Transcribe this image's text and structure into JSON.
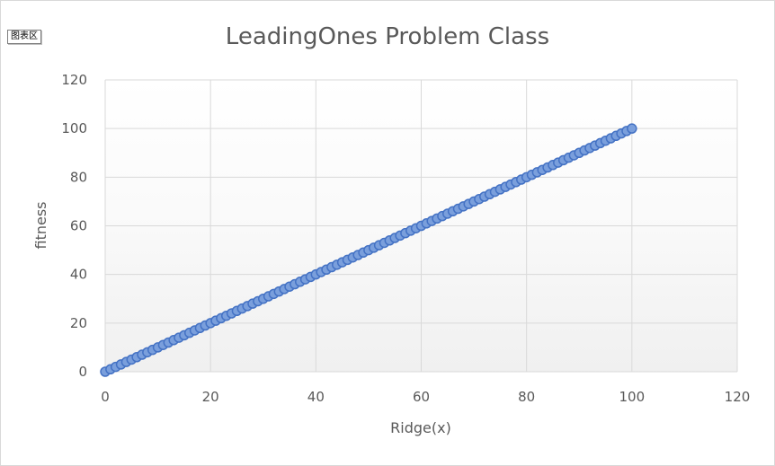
{
  "chart_area_tag": "图表区",
  "colors": {
    "marker_fill": "#7a9fdc",
    "marker_stroke": "#4472c4",
    "gridline": "#d9d9d9",
    "text": "#595959"
  },
  "chart_data": {
    "type": "scatter",
    "title": "LeadingOnes Problem Class",
    "xlabel": "Ridge(x)",
    "ylabel": "fitness",
    "xlim": [
      0,
      120
    ],
    "ylim": [
      0,
      120
    ],
    "x_ticks": [
      0,
      20,
      40,
      60,
      80,
      100,
      120
    ],
    "y_ticks": [
      0,
      20,
      40,
      60,
      80,
      100,
      120
    ],
    "grid": true,
    "legend": "none",
    "series": [
      {
        "x": [
          0,
          1,
          2,
          3,
          4,
          5,
          6,
          7,
          8,
          9,
          10,
          11,
          12,
          13,
          14,
          15,
          16,
          17,
          18,
          19,
          20,
          21,
          22,
          23,
          24,
          25,
          26,
          27,
          28,
          29,
          30,
          31,
          32,
          33,
          34,
          35,
          36,
          37,
          38,
          39,
          40,
          41,
          42,
          43,
          44,
          45,
          46,
          47,
          48,
          49,
          50,
          51,
          52,
          53,
          54,
          55,
          56,
          57,
          58,
          59,
          60,
          61,
          62,
          63,
          64,
          65,
          66,
          67,
          68,
          69,
          70,
          71,
          72,
          73,
          74,
          75,
          76,
          77,
          78,
          79,
          80,
          81,
          82,
          83,
          84,
          85,
          86,
          87,
          88,
          89,
          90,
          91,
          92,
          93,
          94,
          95,
          96,
          97,
          98,
          99,
          100
        ],
        "y": [
          0,
          1,
          2,
          3,
          4,
          5,
          6,
          7,
          8,
          9,
          10,
          11,
          12,
          13,
          14,
          15,
          16,
          17,
          18,
          19,
          20,
          21,
          22,
          23,
          24,
          25,
          26,
          27,
          28,
          29,
          30,
          31,
          32,
          33,
          34,
          35,
          36,
          37,
          38,
          39,
          40,
          41,
          42,
          43,
          44,
          45,
          46,
          47,
          48,
          49,
          50,
          51,
          52,
          53,
          54,
          55,
          56,
          57,
          58,
          59,
          60,
          61,
          62,
          63,
          64,
          65,
          66,
          67,
          68,
          69,
          70,
          71,
          72,
          73,
          74,
          75,
          76,
          77,
          78,
          79,
          80,
          81,
          82,
          83,
          84,
          85,
          86,
          87,
          88,
          89,
          90,
          91,
          92,
          93,
          94,
          95,
          96,
          97,
          98,
          99,
          100
        ]
      }
    ]
  }
}
